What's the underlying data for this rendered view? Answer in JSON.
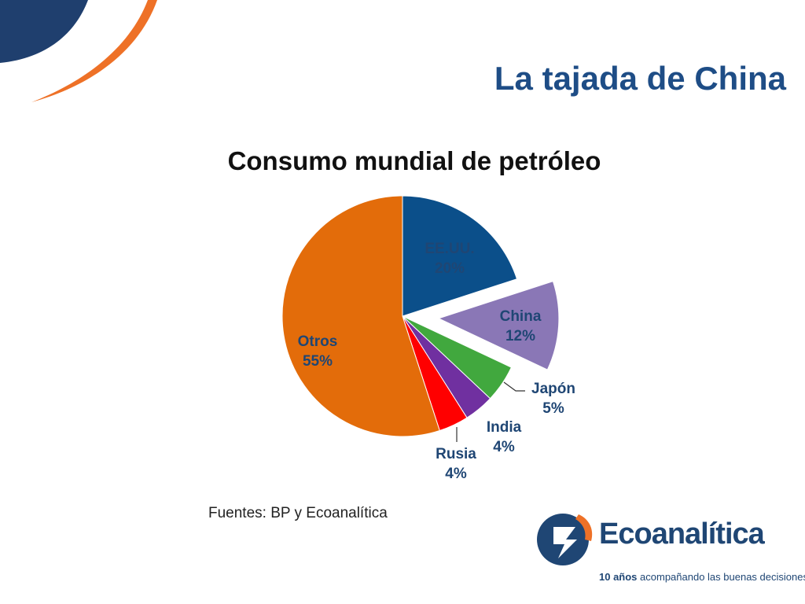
{
  "slide": {
    "title": "La tajada de China",
    "source_note": "Fuentes: BP y Ecoanalítica"
  },
  "logo": {
    "name": "Ecoanalítica",
    "tagline_strong": "10 años",
    "tagline_rest": " acompañando las buenas decisiones"
  },
  "colors": {
    "title": "#1e4d86",
    "deco_navy": "#1f3f6e",
    "deco_orange": "#ee7127",
    "label_text": "#1f4674"
  },
  "chart_data": {
    "type": "pie",
    "title": "Consumo mundial de petróleo",
    "start_angle_deg": 0,
    "direction": "clockwise",
    "slices": [
      {
        "name": "EE.UU.",
        "value": 20,
        "label": "20%",
        "color": "#0b4f8a",
        "exploded": false
      },
      {
        "name": "China",
        "value": 12,
        "label": "12%",
        "color": "#8a77b6",
        "exploded": true
      },
      {
        "name": "Japón",
        "value": 5,
        "label": "5%",
        "color": "#41a83e",
        "exploded": false
      },
      {
        "name": "India",
        "value": 4,
        "label": "4%",
        "color": "#7030a0",
        "exploded": false
      },
      {
        "name": "Rusia",
        "value": 4,
        "label": "4%",
        "color": "#ff0000",
        "exploded": false
      },
      {
        "name": "Otros",
        "value": 55,
        "label": "55%",
        "color": "#e36c0a",
        "exploded": false
      }
    ]
  }
}
